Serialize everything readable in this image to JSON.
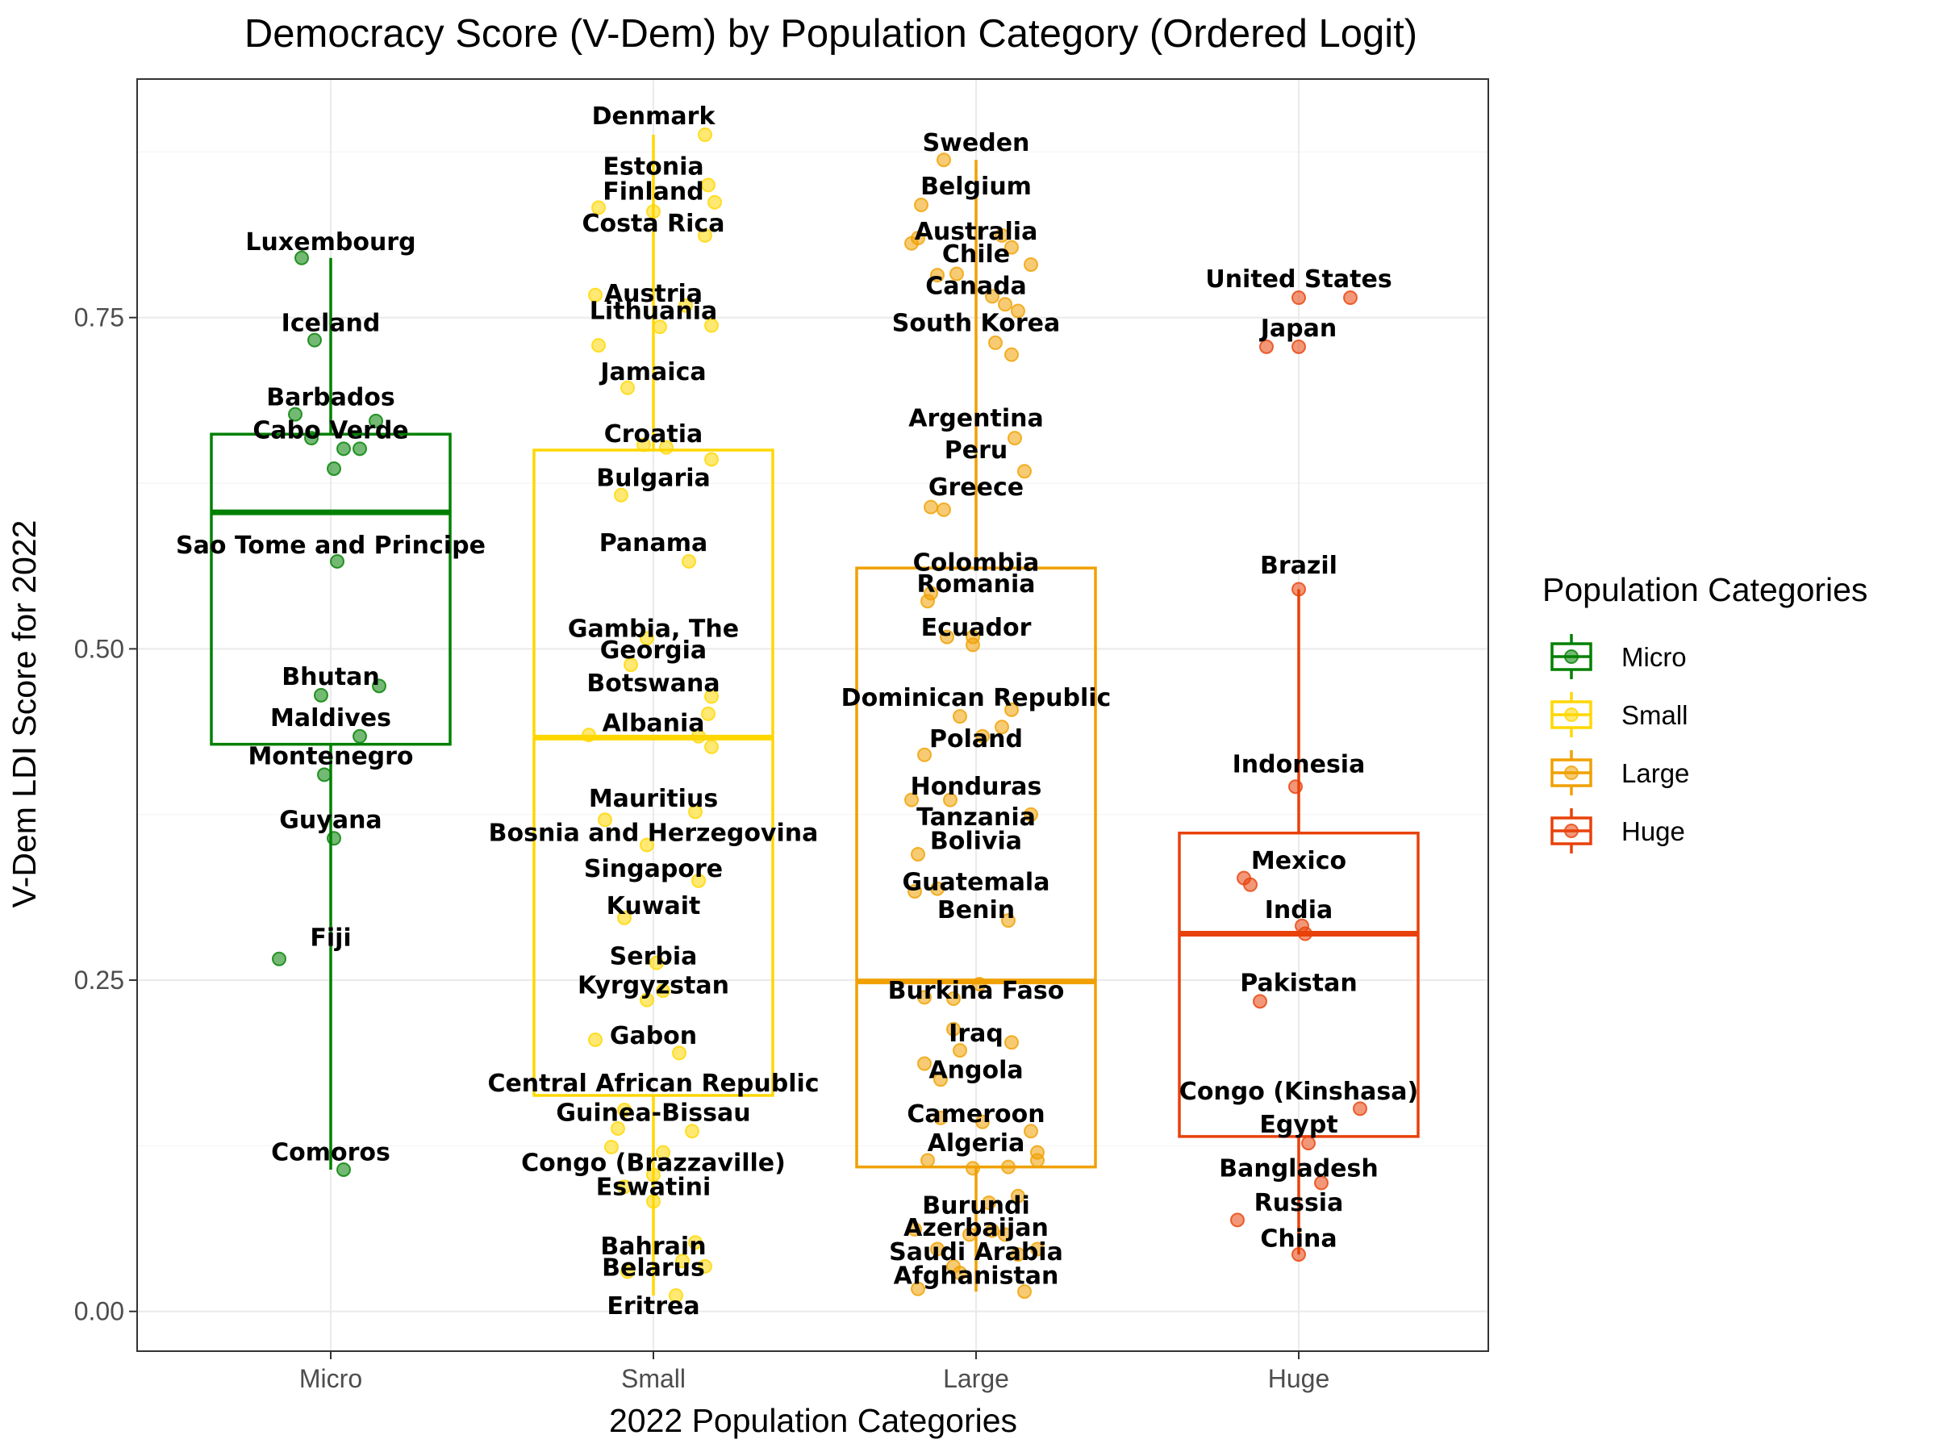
{
  "chart_data": {
    "type": "box",
    "title": "Democracy Score (V-Dem) by Population Category (Ordered Logit)",
    "xlabel": "2022 Population Categories",
    "ylabel": "V-Dem LDI Score for 2022",
    "ylim": [
      -0.03,
      0.93
    ],
    "yticks": [
      "0.00",
      "0.25",
      "0.50",
      "0.75"
    ],
    "ytick_values": [
      0,
      0.25,
      0.5,
      0.75
    ],
    "grid": true,
    "legend": {
      "title": "Population Categories",
      "position": "right",
      "items": [
        "Micro",
        "Small",
        "Large",
        "Huge"
      ]
    },
    "categories": [
      "Micro",
      "Small",
      "Large",
      "Huge"
    ],
    "series": [
      {
        "name": "Micro",
        "color": "#008000",
        "box": {
          "q1": 0.428,
          "median": 0.603,
          "q3": 0.662,
          "whisker_low": 0.107,
          "whisker_high": 0.795
        },
        "labels": [
          {
            "text": "Luxembourg",
            "y": 0.807
          },
          {
            "text": "Iceland",
            "y": 0.746
          },
          {
            "text": "Barbados",
            "y": 0.69
          },
          {
            "text": "Cabo Verde",
            "y": 0.665
          },
          {
            "text": "Sao Tome and Principe",
            "y": 0.578
          },
          {
            "text": "Bhutan",
            "y": 0.479
          },
          {
            "text": "Maldives",
            "y": 0.448
          },
          {
            "text": "Montenegro",
            "y": 0.419
          },
          {
            "text": "Guyana",
            "y": 0.371
          },
          {
            "text": "Fiji",
            "y": 0.282
          },
          {
            "text": "Comoros",
            "y": 0.12
          }
        ],
        "points": [
          {
            "dx": -0.09,
            "y": 0.795
          },
          {
            "dx": -0.05,
            "y": 0.733
          },
          {
            "dx": -0.11,
            "y": 0.677
          },
          {
            "dx": 0.14,
            "y": 0.672
          },
          {
            "dx": -0.06,
            "y": 0.659
          },
          {
            "dx": 0.04,
            "y": 0.651
          },
          {
            "dx": 0.09,
            "y": 0.651
          },
          {
            "dx": 0.01,
            "y": 0.636
          },
          {
            "dx": 0.02,
            "y": 0.566
          },
          {
            "dx": 0.15,
            "y": 0.472
          },
          {
            "dx": -0.03,
            "y": 0.465
          },
          {
            "dx": 0.09,
            "y": 0.434
          },
          {
            "dx": -0.02,
            "y": 0.405
          },
          {
            "dx": 0.01,
            "y": 0.357
          },
          {
            "dx": -0.16,
            "y": 0.266
          },
          {
            "dx": 0.04,
            "y": 0.107
          }
        ]
      },
      {
        "name": "Small",
        "color": "#FFD700",
        "box": {
          "q1": 0.163,
          "median": 0.433,
          "q3": 0.65,
          "whisker_low": 0.012,
          "whisker_high": 0.888
        },
        "labels": [
          {
            "text": "Denmark",
            "y": 0.902
          },
          {
            "text": "Estonia",
            "y": 0.864
          },
          {
            "text": "Finland",
            "y": 0.845
          },
          {
            "text": "Costa Rica",
            "y": 0.821
          },
          {
            "text": "Austria",
            "y": 0.768
          },
          {
            "text": "Lithuania",
            "y": 0.755
          },
          {
            "text": "Jamaica",
            "y": 0.709
          },
          {
            "text": "Croatia",
            "y": 0.662
          },
          {
            "text": "Bulgaria",
            "y": 0.629
          },
          {
            "text": "Panama",
            "y": 0.58
          },
          {
            "text": "Gambia, The",
            "y": 0.515
          },
          {
            "text": "Georgia",
            "y": 0.499
          },
          {
            "text": "Botswana",
            "y": 0.474
          },
          {
            "text": "Albania",
            "y": 0.444
          },
          {
            "text": "Mauritius",
            "y": 0.387
          },
          {
            "text": "Bosnia and Herzegovina",
            "y": 0.361
          },
          {
            "text": "Singapore",
            "y": 0.334
          },
          {
            "text": "Kuwait",
            "y": 0.306
          },
          {
            "text": "Serbia",
            "y": 0.268
          },
          {
            "text": "Kyrgyzstan",
            "y": 0.246
          },
          {
            "text": "Gabon",
            "y": 0.208
          },
          {
            "text": "Central African Republic",
            "y": 0.172
          },
          {
            "text": "Guinea-Bissau",
            "y": 0.15
          },
          {
            "text": "Congo (Brazzaville)",
            "y": 0.112
          },
          {
            "text": "Eswatini",
            "y": 0.094
          },
          {
            "text": "Bahrain",
            "y": 0.049
          },
          {
            "text": "Belarus",
            "y": 0.033
          },
          {
            "text": "Eritrea",
            "y": 0.004
          }
        ],
        "points": [
          {
            "dx": 0.16,
            "y": 0.888
          },
          {
            "dx": 0.17,
            "y": 0.85
          },
          {
            "dx": -0.17,
            "y": 0.833
          },
          {
            "dx": 0.19,
            "y": 0.837
          },
          {
            "dx": 0.0,
            "y": 0.83
          },
          {
            "dx": 0.16,
            "y": 0.812
          },
          {
            "dx": -0.18,
            "y": 0.767
          },
          {
            "dx": 0.1,
            "y": 0.759
          },
          {
            "dx": 0.02,
            "y": 0.743
          },
          {
            "dx": 0.18,
            "y": 0.744
          },
          {
            "dx": -0.17,
            "y": 0.729
          },
          {
            "dx": -0.08,
            "y": 0.697
          },
          {
            "dx": -0.03,
            "y": 0.654
          },
          {
            "dx": 0.04,
            "y": 0.652
          },
          {
            "dx": 0.18,
            "y": 0.643
          },
          {
            "dx": -0.1,
            "y": 0.616
          },
          {
            "dx": 0.11,
            "y": 0.566
          },
          {
            "dx": -0.02,
            "y": 0.508
          },
          {
            "dx": -0.07,
            "y": 0.488
          },
          {
            "dx": 0.18,
            "y": 0.464
          },
          {
            "dx": 0.17,
            "y": 0.451
          },
          {
            "dx": -0.2,
            "y": 0.435
          },
          {
            "dx": 0.14,
            "y": 0.434
          },
          {
            "dx": 0.18,
            "y": 0.426
          },
          {
            "dx": 0.13,
            "y": 0.377
          },
          {
            "dx": -0.15,
            "y": 0.371
          },
          {
            "dx": -0.02,
            "y": 0.352
          },
          {
            "dx": 0.14,
            "y": 0.325
          },
          {
            "dx": -0.09,
            "y": 0.297
          },
          {
            "dx": 0.01,
            "y": 0.263
          },
          {
            "dx": 0.03,
            "y": 0.242
          },
          {
            "dx": -0.02,
            "y": 0.235
          },
          {
            "dx": -0.18,
            "y": 0.205
          },
          {
            "dx": 0.08,
            "y": 0.195
          },
          {
            "dx": -0.09,
            "y": 0.152
          },
          {
            "dx": -0.11,
            "y": 0.138
          },
          {
            "dx": 0.12,
            "y": 0.136
          },
          {
            "dx": -0.13,
            "y": 0.124
          },
          {
            "dx": 0.03,
            "y": 0.12
          },
          {
            "dx": 0.0,
            "y": 0.103
          },
          {
            "dx": -0.09,
            "y": 0.094
          },
          {
            "dx": 0.0,
            "y": 0.083
          },
          {
            "dx": 0.13,
            "y": 0.052
          },
          {
            "dx": 0.09,
            "y": 0.038
          },
          {
            "dx": 0.16,
            "y": 0.034
          },
          {
            "dx": -0.08,
            "y": 0.03
          },
          {
            "dx": 0.07,
            "y": 0.012
          }
        ]
      },
      {
        "name": "Large",
        "color": "#F0A000",
        "box": {
          "q1": 0.109,
          "median": 0.249,
          "q3": 0.561,
          "whisker_low": 0.015,
          "whisker_high": 0.869
        },
        "labels": [
          {
            "text": "Sweden",
            "y": 0.882
          },
          {
            "text": "Belgium",
            "y": 0.849
          },
          {
            "text": "Australia",
            "y": 0.815
          },
          {
            "text": "Chile",
            "y": 0.798
          },
          {
            "text": "Canada",
            "y": 0.774
          },
          {
            "text": "South Korea",
            "y": 0.746
          },
          {
            "text": "Argentina",
            "y": 0.674
          },
          {
            "text": "Peru",
            "y": 0.65
          },
          {
            "text": "Greece",
            "y": 0.622
          },
          {
            "text": "Colombia",
            "y": 0.565
          },
          {
            "text": "Romania",
            "y": 0.549
          },
          {
            "text": "Ecuador",
            "y": 0.516
          },
          {
            "text": "Dominican Republic",
            "y": 0.463
          },
          {
            "text": "Poland",
            "y": 0.432
          },
          {
            "text": "Honduras",
            "y": 0.396
          },
          {
            "text": "Tanzania",
            "y": 0.373
          },
          {
            "text": "Bolivia",
            "y": 0.355
          },
          {
            "text": "Guatemala",
            "y": 0.324
          },
          {
            "text": "Benin",
            "y": 0.303
          },
          {
            "text": "Burkina Faso",
            "y": 0.242
          },
          {
            "text": "Iraq",
            "y": 0.21
          },
          {
            "text": "Angola",
            "y": 0.182
          },
          {
            "text": "Cameroon",
            "y": 0.149
          },
          {
            "text": "Algeria",
            "y": 0.127
          },
          {
            "text": "Burundi",
            "y": 0.08
          },
          {
            "text": "Azerbaijan",
            "y": 0.063
          },
          {
            "text": "Saudi Arabia",
            "y": 0.045
          },
          {
            "text": "Afghanistan",
            "y": 0.027
          }
        ],
        "points": [
          {
            "dx": -0.1,
            "y": 0.869
          },
          {
            "dx": -0.17,
            "y": 0.835
          },
          {
            "dx": 0.08,
            "y": 0.812
          },
          {
            "dx": -0.2,
            "y": 0.806
          },
          {
            "dx": 0.11,
            "y": 0.803
          },
          {
            "dx": -0.18,
            "y": 0.81
          },
          {
            "dx": 0.17,
            "y": 0.79
          },
          {
            "dx": -0.06,
            "y": 0.783
          },
          {
            "dx": -0.12,
            "y": 0.782
          },
          {
            "dx": 0.05,
            "y": 0.766
          },
          {
            "dx": 0.09,
            "y": 0.76
          },
          {
            "dx": 0.13,
            "y": 0.755
          },
          {
            "dx": 0.06,
            "y": 0.731
          },
          {
            "dx": 0.11,
            "y": 0.722
          },
          {
            "dx": 0.12,
            "y": 0.659
          },
          {
            "dx": 0.15,
            "y": 0.634
          },
          {
            "dx": -0.14,
            "y": 0.607
          },
          {
            "dx": -0.1,
            "y": 0.605
          },
          {
            "dx": -0.14,
            "y": 0.542
          },
          {
            "dx": -0.15,
            "y": 0.536
          },
          {
            "dx": -0.09,
            "y": 0.509
          },
          {
            "dx": -0.01,
            "y": 0.509
          },
          {
            "dx": -0.01,
            "y": 0.503
          },
          {
            "dx": 0.11,
            "y": 0.454
          },
          {
            "dx": -0.05,
            "y": 0.449
          },
          {
            "dx": 0.08,
            "y": 0.441
          },
          {
            "dx": 0.02,
            "y": 0.434
          },
          {
            "dx": -0.16,
            "y": 0.42
          },
          {
            "dx": -0.2,
            "y": 0.386
          },
          {
            "dx": -0.08,
            "y": 0.386
          },
          {
            "dx": 0.17,
            "y": 0.375
          },
          {
            "dx": -0.18,
            "y": 0.345
          },
          {
            "dx": -0.19,
            "y": 0.317
          },
          {
            "dx": -0.12,
            "y": 0.319
          },
          {
            "dx": 0.1,
            "y": 0.295
          },
          {
            "dx": -0.16,
            "y": 0.237
          },
          {
            "dx": -0.07,
            "y": 0.236
          },
          {
            "dx": 0.01,
            "y": 0.247
          },
          {
            "dx": -0.07,
            "y": 0.213
          },
          {
            "dx": 0.11,
            "y": 0.203
          },
          {
            "dx": -0.05,
            "y": 0.197
          },
          {
            "dx": -0.16,
            "y": 0.187
          },
          {
            "dx": -0.11,
            "y": 0.175
          },
          {
            "dx": -0.11,
            "y": 0.146
          },
          {
            "dx": 0.02,
            "y": 0.143
          },
          {
            "dx": 0.17,
            "y": 0.136
          },
          {
            "dx": 0.19,
            "y": 0.12
          },
          {
            "dx": 0.19,
            "y": 0.114
          },
          {
            "dx": -0.15,
            "y": 0.114
          },
          {
            "dx": 0.1,
            "y": 0.109
          },
          {
            "dx": -0.01,
            "y": 0.108
          },
          {
            "dx": 0.13,
            "y": 0.087
          },
          {
            "dx": 0.04,
            "y": 0.082
          },
          {
            "dx": 0.05,
            "y": 0.061
          },
          {
            "dx": -0.02,
            "y": 0.058
          },
          {
            "dx": 0.19,
            "y": 0.047
          },
          {
            "dx": 0.13,
            "y": 0.043
          },
          {
            "dx": 0.09,
            "y": 0.058
          },
          {
            "dx": -0.19,
            "y": 0.062
          },
          {
            "dx": -0.12,
            "y": 0.047
          },
          {
            "dx": -0.07,
            "y": 0.034
          },
          {
            "dx": -0.05,
            "y": 0.029
          },
          {
            "dx": -0.18,
            "y": 0.017
          },
          {
            "dx": 0.15,
            "y": 0.015
          }
        ]
      },
      {
        "name": "Huge",
        "color": "#E8410A",
        "box": {
          "q1": 0.132,
          "median": 0.285,
          "q3": 0.361,
          "whisker_low": 0.043,
          "whisker_high": 0.545
        },
        "labels": [
          {
            "text": "United States",
            "y": 0.779
          },
          {
            "text": "Japan",
            "y": 0.742
          },
          {
            "text": "Brazil",
            "y": 0.563
          },
          {
            "text": "Indonesia",
            "y": 0.413
          },
          {
            "text": "Mexico",
            "y": 0.34
          },
          {
            "text": "India",
            "y": 0.303
          },
          {
            "text": "Pakistan",
            "y": 0.248
          },
          {
            "text": "Congo (Kinshasa)",
            "y": 0.166
          },
          {
            "text": "Egypt",
            "y": 0.141
          },
          {
            "text": "Bangladesh",
            "y": 0.108
          },
          {
            "text": "Russia",
            "y": 0.082
          },
          {
            "text": "China",
            "y": 0.055
          }
        ],
        "points": [
          {
            "dx": 0.0,
            "y": 0.765
          },
          {
            "dx": 0.16,
            "y": 0.765
          },
          {
            "dx": -0.1,
            "y": 0.728
          },
          {
            "dx": 0.0,
            "y": 0.728
          },
          {
            "dx": 0.0,
            "y": 0.545
          },
          {
            "dx": -0.01,
            "y": 0.396
          },
          {
            "dx": -0.17,
            "y": 0.327
          },
          {
            "dx": -0.15,
            "y": 0.322
          },
          {
            "dx": 0.01,
            "y": 0.291
          },
          {
            "dx": 0.02,
            "y": 0.285
          },
          {
            "dx": -0.12,
            "y": 0.234
          },
          {
            "dx": 0.19,
            "y": 0.153
          },
          {
            "dx": 0.03,
            "y": 0.127
          },
          {
            "dx": 0.07,
            "y": 0.097
          },
          {
            "dx": -0.19,
            "y": 0.069
          },
          {
            "dx": 0.0,
            "y": 0.043
          }
        ]
      }
    ]
  }
}
